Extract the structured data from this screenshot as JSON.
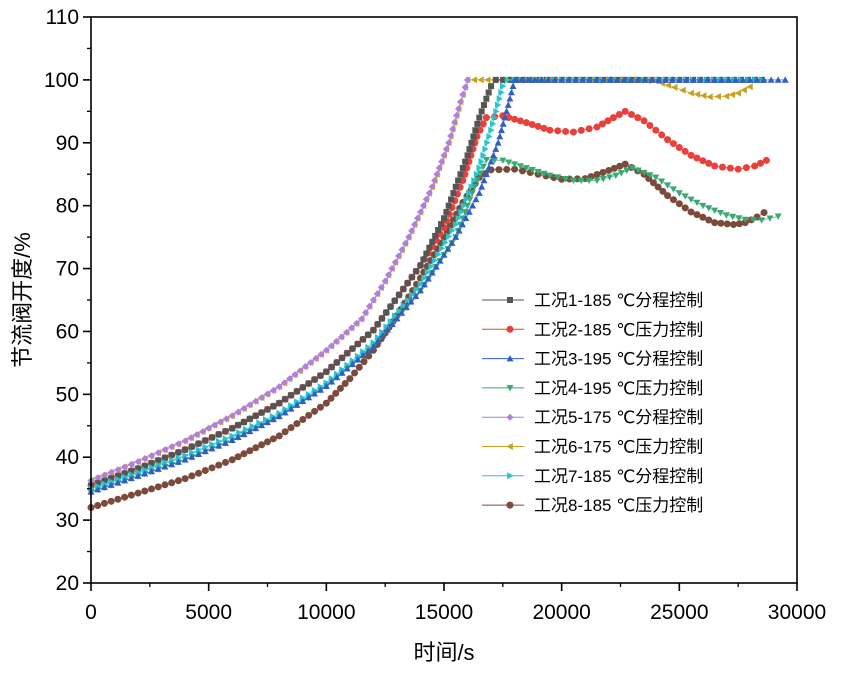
{
  "chart_data": {
    "type": "scatter",
    "xlabel": "时间/s",
    "ylabel": "节流阀开度/%",
    "xlim": [
      0,
      30000
    ],
    "ylim": [
      20,
      110
    ],
    "x_ticks": [
      "0",
      "5000",
      "10000",
      "15000",
      "20000",
      "25000",
      "30000"
    ],
    "y_ticks": [
      "20",
      "30",
      "40",
      "50",
      "60",
      "70",
      "80",
      "90",
      "100",
      "110"
    ],
    "grid": false,
    "legend_position": "center-right",
    "series": [
      {
        "name": "工况1-185 ℃分程控制",
        "color": "#555555",
        "marker": "square",
        "points": [
          [
            0,
            35.5
          ],
          [
            2000,
            38.2
          ],
          [
            4000,
            41.2
          ],
          [
            6000,
            44.6
          ],
          [
            8000,
            48.6
          ],
          [
            10000,
            53.6
          ],
          [
            12000,
            60.2
          ],
          [
            14000,
            70.5
          ],
          [
            15000,
            78
          ],
          [
            16000,
            88
          ],
          [
            16500,
            94
          ],
          [
            17000,
            99
          ],
          [
            17200,
            100
          ],
          [
            20000,
            100
          ],
          [
            25000,
            100
          ],
          [
            28500,
            100
          ]
        ]
      },
      {
        "name": "工况2-185 ℃压力控制",
        "color": "#e8403a",
        "marker": "circle",
        "points": [
          [
            0,
            35.5
          ],
          [
            2000,
            38.2
          ],
          [
            4000,
            41.2
          ],
          [
            6000,
            44.6
          ],
          [
            8000,
            48.6
          ],
          [
            10000,
            53.6
          ],
          [
            12000,
            60.2
          ],
          [
            14000,
            70.5
          ],
          [
            15000,
            76.5
          ],
          [
            15800,
            84
          ],
          [
            16400,
            91
          ],
          [
            16800,
            94
          ],
          [
            17500,
            94.3
          ],
          [
            18500,
            93.2
          ],
          [
            19500,
            92
          ],
          [
            20500,
            91.7
          ],
          [
            21500,
            92.5
          ],
          [
            22200,
            94
          ],
          [
            22700,
            95
          ],
          [
            23500,
            93.5
          ],
          [
            24500,
            90.5
          ],
          [
            25500,
            88
          ],
          [
            26500,
            86.3
          ],
          [
            27500,
            85.8
          ],
          [
            28200,
            86.3
          ],
          [
            28700,
            87.2
          ]
        ]
      },
      {
        "name": "工况3-195 ℃分程控制",
        "color": "#2f5fc4",
        "marker": "triangle-up",
        "points": [
          [
            0,
            34.5
          ],
          [
            2000,
            37
          ],
          [
            4000,
            39.6
          ],
          [
            6000,
            42.7
          ],
          [
            8000,
            46.5
          ],
          [
            10000,
            51.3
          ],
          [
            12000,
            57.6
          ],
          [
            14000,
            66.5
          ],
          [
            15500,
            75
          ],
          [
            16500,
            82
          ],
          [
            17300,
            90
          ],
          [
            17800,
            97
          ],
          [
            18000,
            100
          ],
          [
            20000,
            100
          ],
          [
            25000,
            100
          ],
          [
            29500,
            100
          ]
        ]
      },
      {
        "name": "工况4-195 ℃压力控制",
        "color": "#3aa873",
        "marker": "triangle-down",
        "points": [
          [
            0,
            34.5
          ],
          [
            2000,
            37
          ],
          [
            4000,
            39.6
          ],
          [
            6000,
            42.7
          ],
          [
            8000,
            46.5
          ],
          [
            10000,
            51.3
          ],
          [
            12000,
            57.6
          ],
          [
            14000,
            66.5
          ],
          [
            15500,
            75
          ],
          [
            16300,
            83
          ],
          [
            16800,
            87.3
          ],
          [
            17500,
            87.2
          ],
          [
            18500,
            86
          ],
          [
            19500,
            84.8
          ],
          [
            20500,
            84
          ],
          [
            21500,
            84
          ],
          [
            22300,
            84.8
          ],
          [
            23000,
            86
          ],
          [
            24000,
            84.5
          ],
          [
            25000,
            82
          ],
          [
            26000,
            80
          ],
          [
            27000,
            78.5
          ],
          [
            27800,
            77.8
          ],
          [
            28500,
            77.7
          ],
          [
            29200,
            78.3
          ]
        ]
      },
      {
        "name": "工况5-175 ℃分程控制",
        "color": "#b07fe0",
        "marker": "diamond",
        "points": [
          [
            0,
            36.3
          ],
          [
            2000,
            39.3
          ],
          [
            4000,
            42.6
          ],
          [
            6000,
            46.6
          ],
          [
            8000,
            51.2
          ],
          [
            10000,
            57
          ],
          [
            11500,
            62
          ],
          [
            12500,
            68
          ],
          [
            13500,
            75
          ],
          [
            14500,
            83
          ],
          [
            15200,
            90
          ],
          [
            15700,
            96.5
          ],
          [
            16000,
            100
          ]
        ]
      },
      {
        "name": "工况6-175 ℃压力控制",
        "color": "#c8a020",
        "marker": "triangle-left",
        "points": [
          [
            0,
            36.3
          ],
          [
            2000,
            39.3
          ],
          [
            4000,
            42.6
          ],
          [
            6000,
            46.6
          ],
          [
            8000,
            51.2
          ],
          [
            10000,
            57
          ],
          [
            11500,
            62
          ],
          [
            12500,
            68
          ],
          [
            13500,
            75
          ],
          [
            14500,
            83
          ],
          [
            15200,
            90
          ],
          [
            15700,
            96.5
          ],
          [
            16000,
            100
          ],
          [
            18000,
            100
          ],
          [
            20000,
            100
          ],
          [
            23000,
            100
          ],
          [
            24000,
            99.8
          ],
          [
            24800,
            98.8
          ],
          [
            25500,
            97.9
          ],
          [
            26300,
            97.3
          ],
          [
            27000,
            97.4
          ],
          [
            27500,
            97.9
          ],
          [
            28000,
            98.9
          ]
        ]
      },
      {
        "name": "工况7-185 ℃分程控制",
        "color": "#28c3cc",
        "marker": "triangle-right",
        "points": [
          [
            0,
            35
          ],
          [
            2000,
            37.6
          ],
          [
            4000,
            40.3
          ],
          [
            6000,
            43.4
          ],
          [
            8000,
            47
          ],
          [
            10000,
            51.8
          ],
          [
            12000,
            58.2
          ],
          [
            14000,
            67.5
          ],
          [
            15500,
            77
          ],
          [
            16500,
            86
          ],
          [
            17000,
            92
          ],
          [
            17500,
            99
          ],
          [
            17700,
            100
          ],
          [
            20000,
            100
          ],
          [
            25000,
            100
          ],
          [
            28500,
            100
          ]
        ]
      },
      {
        "name": "工况8-185 ℃压力控制",
        "color": "#7a4a3a",
        "marker": "circle",
        "points": [
          [
            0,
            32
          ],
          [
            2000,
            34.3
          ],
          [
            4000,
            36.6
          ],
          [
            6000,
            39.6
          ],
          [
            8000,
            43.4
          ],
          [
            10000,
            48.6
          ],
          [
            11000,
            52.5
          ],
          [
            12000,
            57
          ],
          [
            13000,
            62.5
          ],
          [
            14000,
            68.5
          ],
          [
            15000,
            75
          ],
          [
            15800,
            80.5
          ],
          [
            16500,
            84.5
          ],
          [
            17000,
            85.7
          ],
          [
            18000,
            85.8
          ],
          [
            19000,
            85
          ],
          [
            20000,
            84.2
          ],
          [
            21000,
            84.3
          ],
          [
            22000,
            85.6
          ],
          [
            22700,
            86.6
          ],
          [
            23500,
            85
          ],
          [
            24500,
            81.6
          ],
          [
            25500,
            79
          ],
          [
            26500,
            77.3
          ],
          [
            27300,
            77
          ],
          [
            27800,
            77.3
          ],
          [
            28300,
            78.2
          ],
          [
            28600,
            78.9
          ]
        ]
      }
    ]
  }
}
